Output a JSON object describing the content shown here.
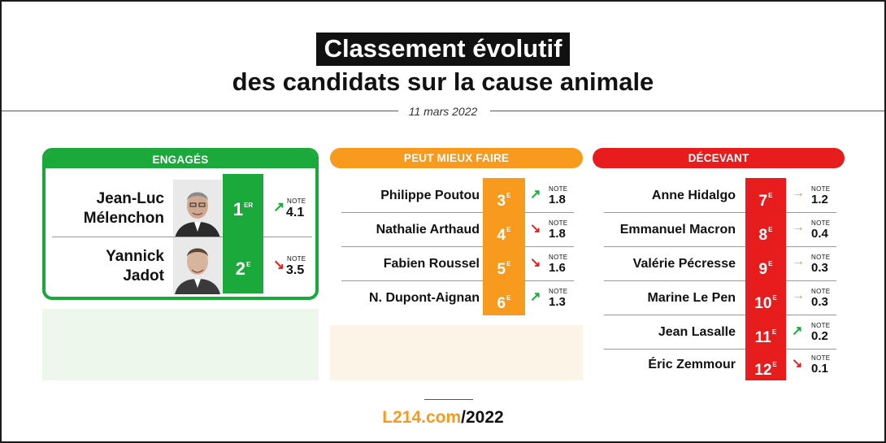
{
  "title_line1": "Classement évolutif",
  "title_line2": "des candidats sur la cause animale",
  "date": "11 mars 2022",
  "colors": {
    "green": "#1aa93a",
    "orange": "#f79a1e",
    "red": "#e71d1d"
  },
  "columns": {
    "engages": {
      "label": "ENGAGÉS",
      "candidates": [
        {
          "name_line1": "Jean-Luc",
          "name_line2": "Mélenchon",
          "rank": "1",
          "rank_suffix": "ER",
          "trend": "up",
          "trend_icon": "arrow-up-right-icon",
          "note_label": "NOTE",
          "note": "4.1"
        },
        {
          "name_line1": "Yannick",
          "name_line2": "Jadot",
          "rank": "2",
          "rank_suffix": "E",
          "trend": "down",
          "trend_icon": "arrow-down-right-icon",
          "note_label": "NOTE",
          "note": "3.5"
        }
      ]
    },
    "peut_mieux_faire": {
      "label": "PEUT MIEUX FAIRE",
      "candidates": [
        {
          "name": "Philippe Poutou",
          "rank": "3",
          "rank_suffix": "E",
          "trend": "up",
          "trend_icon": "arrow-up-right-icon",
          "note_label": "NOTE",
          "note": "1.8"
        },
        {
          "name": "Nathalie Arthaud",
          "rank": "4",
          "rank_suffix": "E",
          "trend": "down",
          "trend_icon": "arrow-down-right-icon",
          "note_label": "NOTE",
          "note": "1.8"
        },
        {
          "name": "Fabien Roussel",
          "rank": "5",
          "rank_suffix": "E",
          "trend": "down",
          "trend_icon": "arrow-down-right-icon",
          "note_label": "NOTE",
          "note": "1.6"
        },
        {
          "name": "N. Dupont-Aignan",
          "rank": "6",
          "rank_suffix": "E",
          "trend": "up",
          "trend_icon": "arrow-up-right-icon",
          "note_label": "NOTE",
          "note": "1.3"
        }
      ]
    },
    "decevant": {
      "label": "DÉCEVANT",
      "candidates": [
        {
          "name": "Anne Hidalgo",
          "rank": "7",
          "rank_suffix": "E",
          "trend": "flat",
          "trend_icon": "arrow-right-icon",
          "note_label": "NOTE",
          "note": "1.2"
        },
        {
          "name": "Emmanuel Macron",
          "rank": "8",
          "rank_suffix": "E",
          "trend": "flat",
          "trend_icon": "arrow-right-icon",
          "note_label": "NOTE",
          "note": "0.4"
        },
        {
          "name": "Valérie Pécresse",
          "rank": "9",
          "rank_suffix": "E",
          "trend": "flat",
          "trend_icon": "arrow-right-icon",
          "note_label": "NOTE",
          "note": "0.3"
        },
        {
          "name": "Marine Le Pen",
          "rank": "10",
          "rank_suffix": "E",
          "trend": "flat",
          "trend_icon": "arrow-right-icon",
          "note_label": "NOTE",
          "note": "0.3"
        },
        {
          "name": "Jean Lasalle",
          "rank": "11",
          "rank_suffix": "E",
          "trend": "up",
          "trend_icon": "arrow-up-right-icon",
          "note_label": "NOTE",
          "note": "0.2"
        },
        {
          "name": "Éric Zemmour",
          "rank": "12",
          "rank_suffix": "E",
          "trend": "down",
          "trend_icon": "arrow-down-right-icon",
          "note_label": "NOTE",
          "note": "0.1"
        }
      ]
    }
  },
  "footer": {
    "site": "L214.com",
    "year": "/2022"
  }
}
